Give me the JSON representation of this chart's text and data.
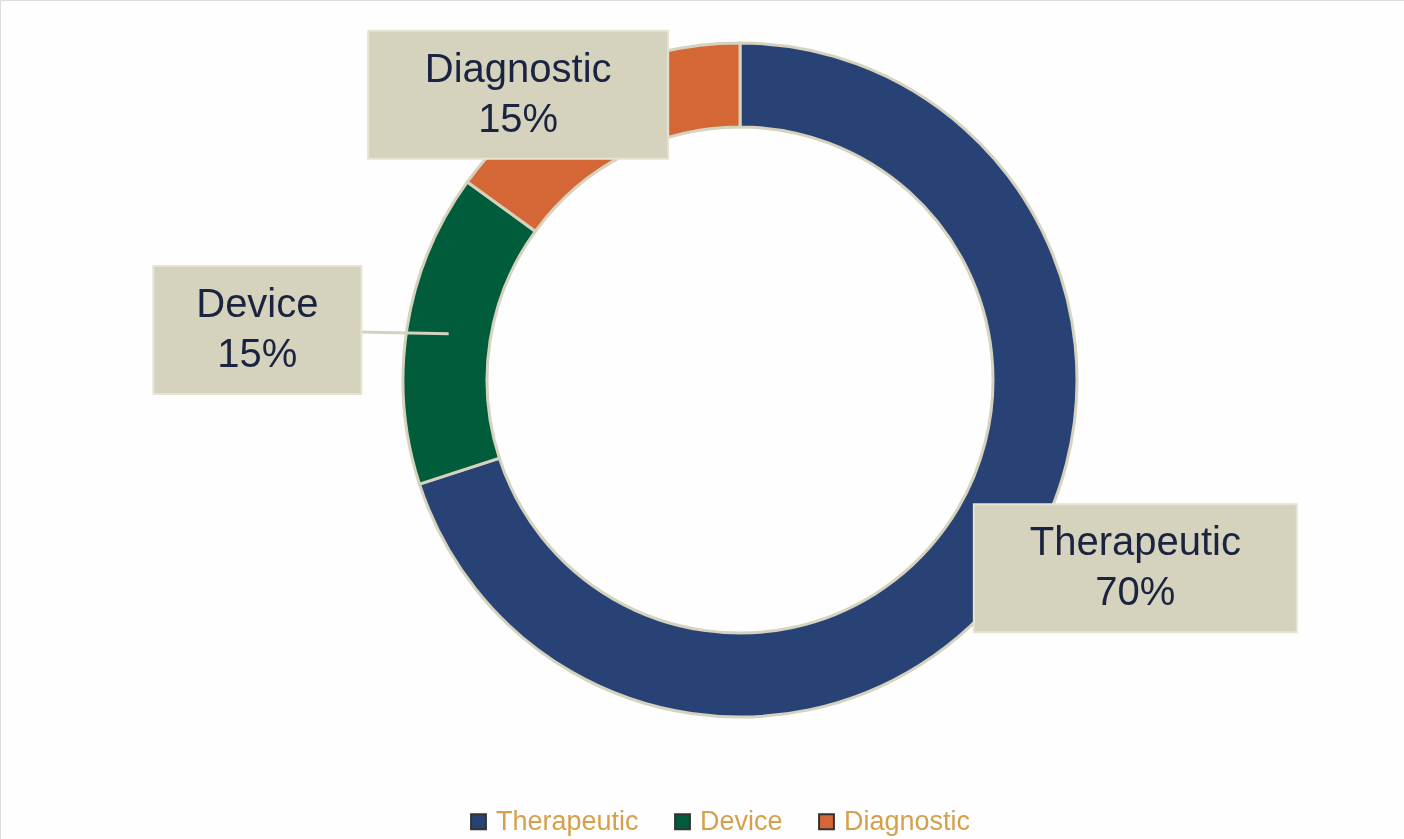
{
  "chart_data": {
    "type": "donut",
    "categories": [
      "Therapeutic",
      "Device",
      "Diagnostic"
    ],
    "values": [
      70,
      15,
      15
    ],
    "colors": [
      "#284276",
      "#005c3a",
      "#d56636"
    ],
    "value_labels": [
      "70%",
      "15%",
      "15%"
    ],
    "legend": "bottom"
  }
}
